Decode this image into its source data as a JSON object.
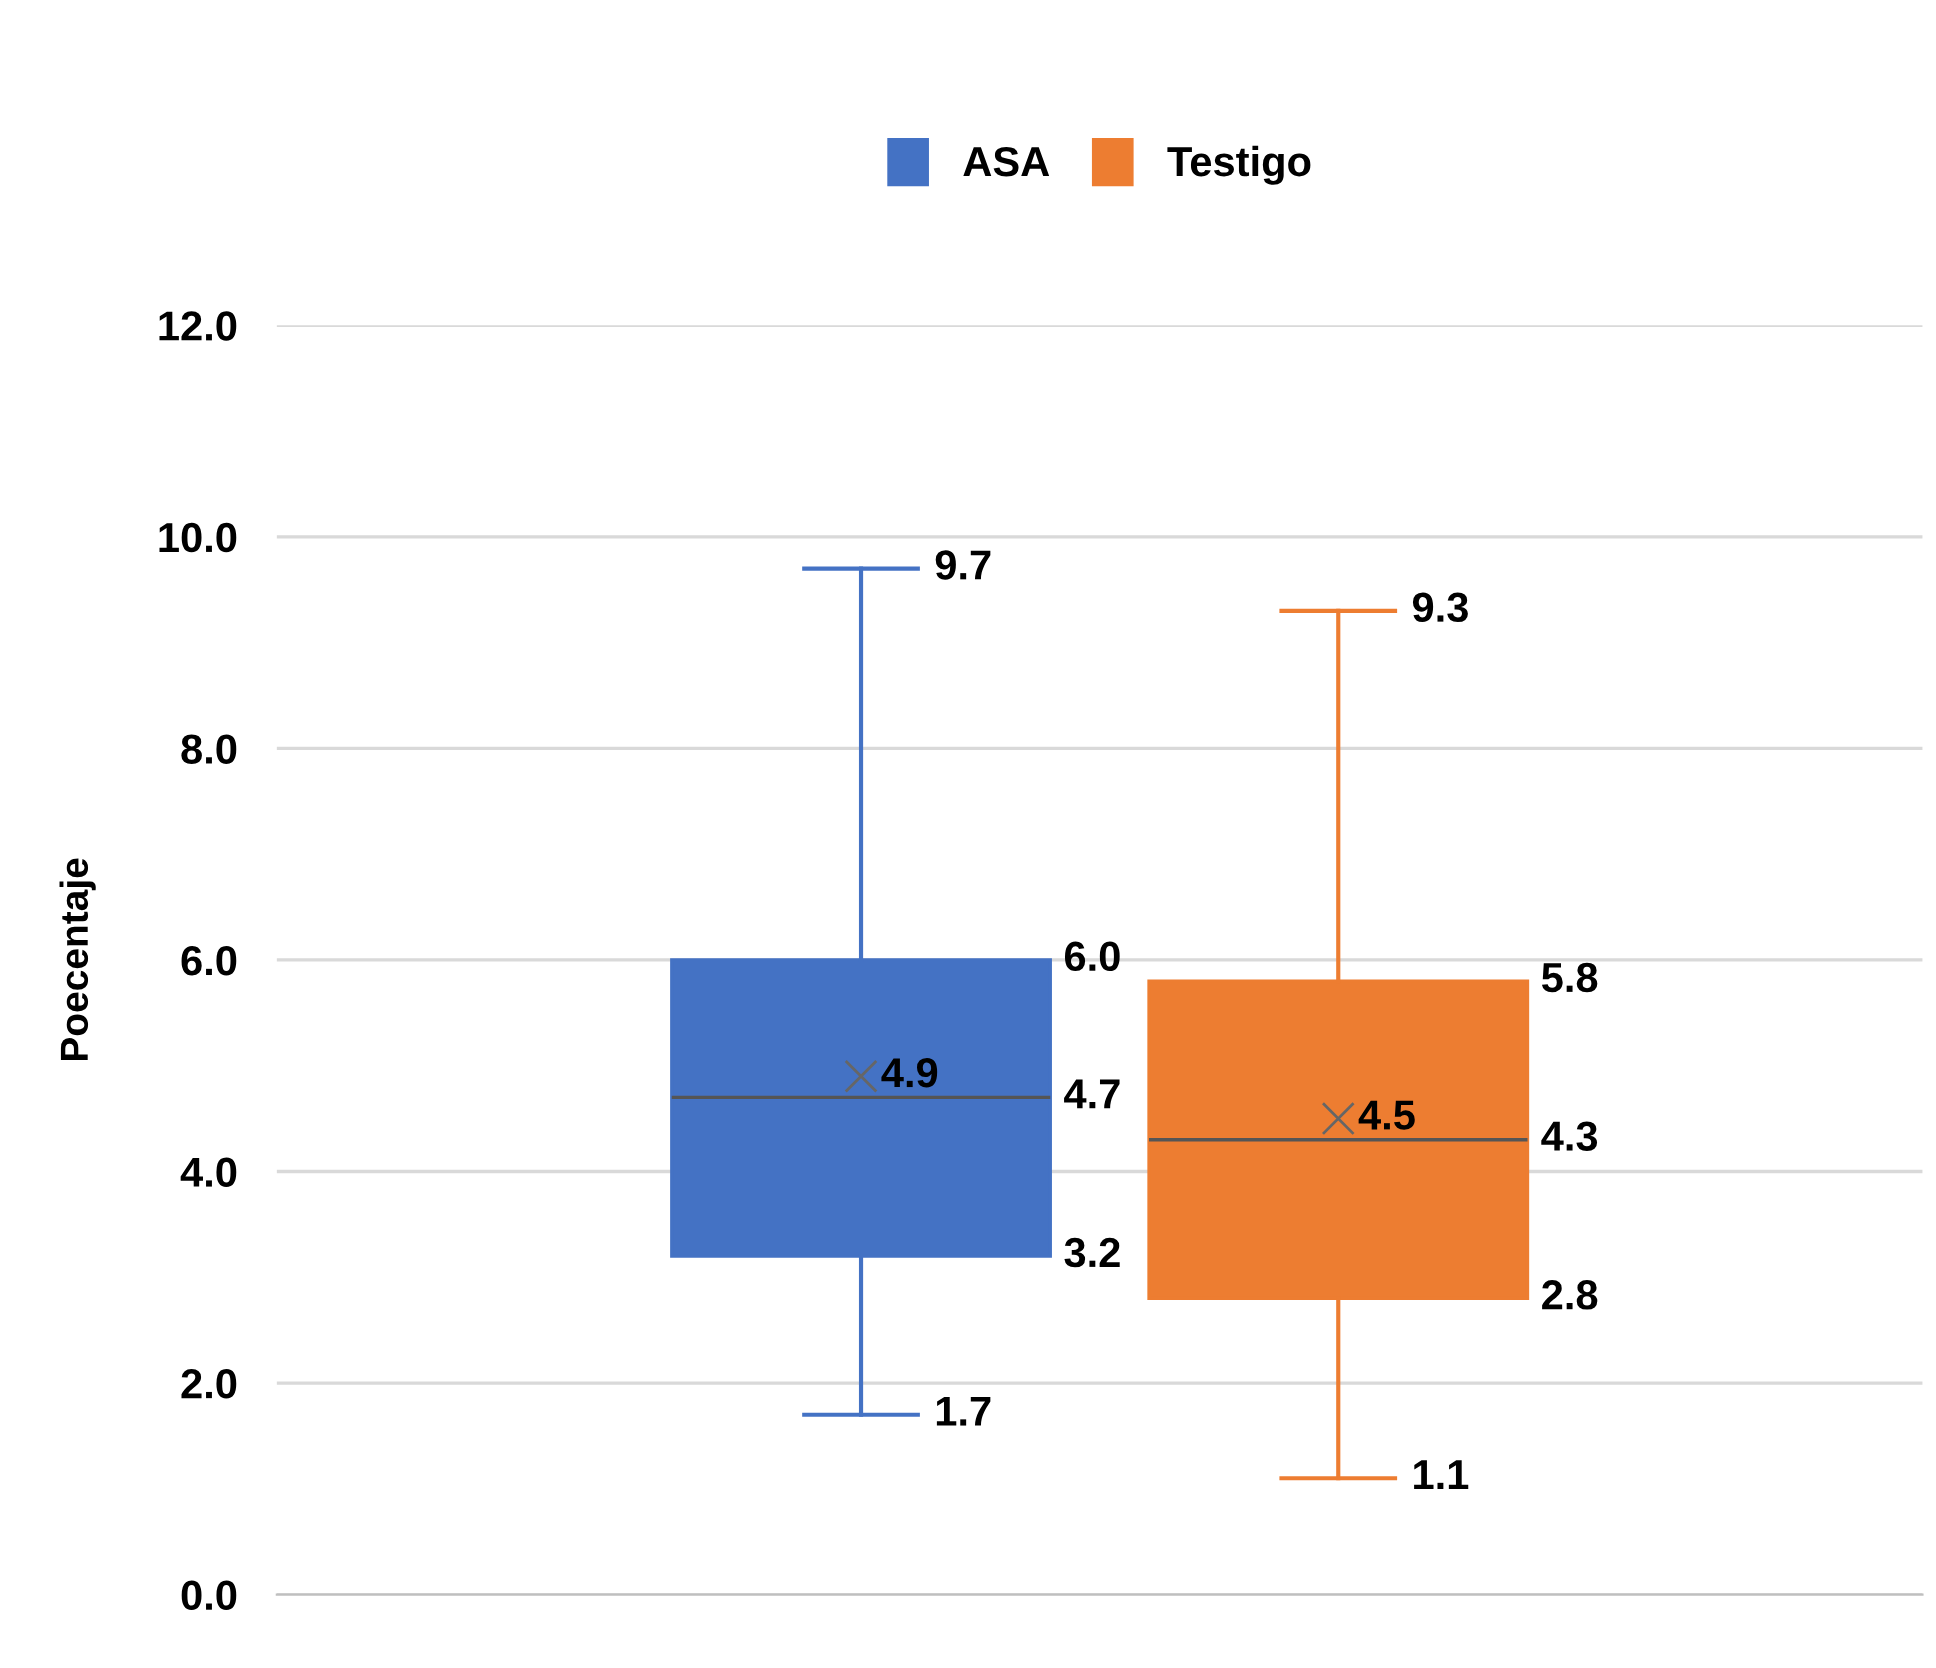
{
  "chart_data": {
    "type": "box",
    "ylabel": "Poecentaje",
    "categories": [
      null
    ],
    "series": [
      {
        "name": "ASA",
        "color": "#4472c4",
        "boxes": [
          {
            "low": 1.7,
            "q1": 3.2,
            "median": 4.7,
            "q3": 6.0,
            "high": 9.7,
            "mean": 4.9
          }
        ]
      },
      {
        "name": "Testigo",
        "color": "#ed7d31",
        "boxes": [
          {
            "low": 1.1,
            "q1": 2.8,
            "median": 4.3,
            "q3": 5.8,
            "high": 9.3,
            "mean": 4.5
          }
        ]
      }
    ],
    "ylim": [
      0,
      12
    ],
    "yticks": [
      {
        "value": 0,
        "label": "0.0"
      },
      {
        "value": 2,
        "label": "2.0"
      },
      {
        "value": 4,
        "label": "4.0"
      },
      {
        "value": 6,
        "label": "6.0"
      },
      {
        "value": 8,
        "label": "8.0"
      },
      {
        "value": 10,
        "label": "10.0"
      },
      {
        "value": 12,
        "label": "12.0"
      }
    ],
    "annotations": [
      "1.7",
      "3.2",
      "4.7",
      "6.0",
      "9.7",
      "4.9",
      "1.1",
      "2.8",
      "4.3",
      "5.8",
      "9.3",
      "4.5"
    ],
    "grid": "y",
    "legend": "top",
    "marker": "cross"
  }
}
